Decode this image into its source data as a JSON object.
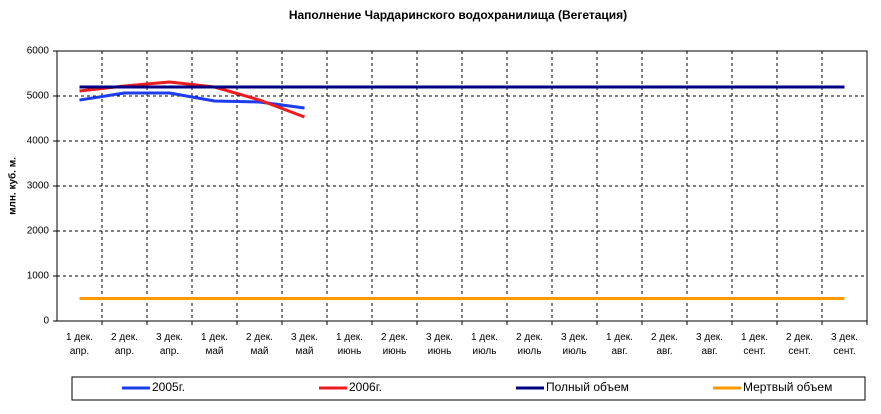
{
  "chart_data": {
    "type": "line",
    "title": "Наполнение Чардаринского водохранилища (Вегетация)",
    "y_label": "млн. куб. м.",
    "categories": [
      "1 дек.\nапр.",
      "2 дек.\nапр.",
      "3 дек.\nапр.",
      "1 дек.\nмай",
      "2 дек.\nмай",
      "3 дек.\nмай",
      "1 дек.\nиюнь",
      "2 дек.\nиюнь",
      "3 дек.\nиюнь",
      "1 дек.\nиюль",
      "2 дек.\nиюль",
      "3 дек.\nиюль",
      "1 дек.\nавг.",
      "2 дек.\nавг.",
      "3 дек.\nавг.",
      "1 дек.\nсент.",
      "2 дек.\nсент.",
      "3 дек.\nсент."
    ],
    "series": [
      {
        "name": "2005г.",
        "color": "#1c3cf0",
        "values": [
          4910,
          5067,
          5067,
          4889,
          4867,
          4733,
          null,
          null,
          null,
          null,
          null,
          null,
          null,
          null,
          null,
          null,
          null,
          null
        ]
      },
      {
        "name": "2006г.",
        "color": "#ee1c1c",
        "values": [
          5111,
          5222,
          5311,
          5200,
          4911,
          4533,
          null,
          null,
          null,
          null,
          null,
          null,
          null,
          null,
          null,
          null,
          null,
          null
        ]
      },
      {
        "name": "Полный объем",
        "color": "#000080",
        "values": [
          5200,
          5200,
          5200,
          5200,
          5200,
          5200,
          5200,
          5200,
          5200,
          5200,
          5200,
          5200,
          5200,
          5200,
          5200,
          5200,
          5200,
          5200
        ]
      },
      {
        "name": "Мертвый объем",
        "color": "#ff9900",
        "values": [
          500,
          500,
          500,
          500,
          500,
          500,
          500,
          500,
          500,
          500,
          500,
          500,
          500,
          500,
          500,
          500,
          500,
          500
        ]
      }
    ],
    "ylim": [
      0,
      6000
    ],
    "yticks": [
      0,
      1000,
      2000,
      3000,
      4000,
      5000,
      6000
    ],
    "grid": true,
    "legend": "bottom"
  }
}
